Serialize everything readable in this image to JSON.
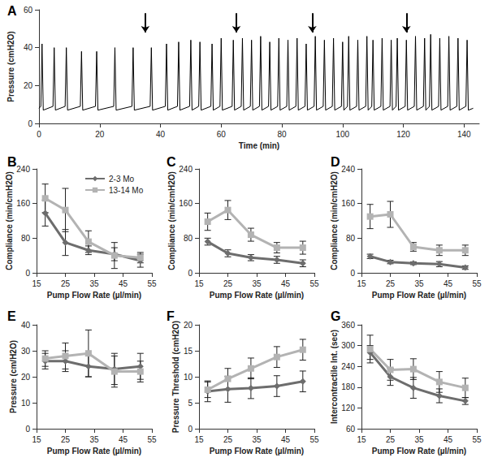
{
  "chart_data": [
    {
      "type": "line",
      "title": "A",
      "xlabel": "Time (min)",
      "ylabel": "Pressure (cmH2O)",
      "color": "#000000",
      "grid": false,
      "xlim": [
        0,
        145
      ],
      "xticks": [
        0,
        20,
        40,
        60,
        80,
        100,
        120,
        140
      ],
      "ylim": [
        0,
        60
      ],
      "yticks": [
        0,
        20,
        40,
        60
      ],
      "arrows": [
        35,
        65,
        90,
        121
      ],
      "x": [
        0,
        0.6,
        1,
        1.4,
        4.6,
        5,
        5.4,
        8.6,
        9,
        9.4,
        13.6,
        14,
        14.4,
        18.6,
        19,
        19.4,
        24.6,
        25,
        25.4,
        30.6,
        31,
        31.4,
        36.6,
        37,
        37.4,
        41.6,
        42,
        42.4,
        45.6,
        46,
        46.4,
        49.6,
        50,
        50.4,
        52.6,
        53,
        53.4,
        56.6,
        57,
        57.4,
        59.6,
        60,
        60.4,
        63.6,
        64,
        64.4,
        66.6,
        67,
        67.4,
        69.6,
        70,
        70.4,
        72.6,
        73,
        73.4,
        75.6,
        76,
        76.4,
        78.6,
        79,
        79.4,
        81.6,
        82,
        82.4,
        84.6,
        85,
        85.4,
        87.6,
        88,
        88.4,
        90.6,
        91,
        91.4,
        93.6,
        94,
        94.4,
        96.6,
        97,
        97.4,
        99.6,
        100,
        100.4,
        101.6,
        102,
        102.4,
        104.6,
        105,
        105.4,
        107.6,
        108,
        108.4,
        109.6,
        110,
        110.4,
        112.6,
        113,
        113.4,
        115.6,
        116,
        116.4,
        117.6,
        118,
        118.4,
        120.6,
        121,
        121.4,
        123.6,
        124,
        124.4,
        126.6,
        127,
        127.4,
        128.6,
        129,
        129.4,
        131.6,
        132,
        132.4,
        134.6,
        135,
        135.4,
        137.6,
        138,
        138.4,
        140.6,
        141,
        141.4,
        143
      ],
      "values": [
        8,
        9,
        42,
        7,
        9,
        40,
        7,
        9,
        40,
        7,
        9,
        38,
        7,
        9,
        38,
        7,
        9,
        40,
        7,
        9,
        40,
        7,
        9,
        40,
        7,
        9,
        42,
        7,
        9,
        43,
        7,
        9,
        44,
        7,
        9,
        43,
        7,
        9,
        42,
        7,
        9,
        45,
        7,
        9,
        44,
        7,
        9,
        45,
        7,
        9,
        44,
        7,
        9,
        46,
        7,
        9,
        43,
        7,
        9,
        45,
        7,
        9,
        44,
        7,
        9,
        45,
        7,
        9,
        42,
        7,
        9,
        46,
        7,
        9,
        44,
        7,
        9,
        45,
        7,
        9,
        43,
        7,
        9,
        46,
        7,
        9,
        44,
        7,
        9,
        46,
        7,
        9,
        44,
        7,
        9,
        45,
        7,
        9,
        44,
        7,
        9,
        45,
        7,
        9,
        44,
        7,
        9,
        46,
        7,
        9,
        45,
        7,
        9,
        47,
        7,
        9,
        45,
        7,
        9,
        46,
        7,
        9,
        45,
        7,
        9,
        44,
        7,
        8
      ]
    },
    {
      "type": "line",
      "title": "B",
      "xlabel": "Pump Flow Rate (µl/min)",
      "ylabel": "Compliance (min/cmH2O)",
      "grid": false,
      "legend": "top-right",
      "xlim": [
        15,
        55
      ],
      "xticks": [
        15,
        25,
        35,
        45,
        55
      ],
      "ylim": [
        0,
        240
      ],
      "yticks": [
        0,
        80,
        160,
        240
      ],
      "x": [
        18,
        25,
        33,
        42,
        51
      ],
      "series": [
        {
          "name": "2-3 Mo",
          "color": "#6d6d6d",
          "marker": "diamond",
          "values": [
            138,
            70,
            52,
            43,
            28
          ],
          "errors": [
            30,
            30,
            10,
            15,
            15
          ]
        },
        {
          "name": "13-14 Mo",
          "color": "#b3b3b3",
          "marker": "square",
          "values": [
            172,
            145,
            72,
            40,
            35
          ],
          "errors": [
            33,
            50,
            25,
            30,
            12
          ]
        }
      ]
    },
    {
      "type": "line",
      "title": "C",
      "xlabel": "Pump Flow Rate (µl/min)",
      "ylabel": "Compliance (min/cmH2O)",
      "grid": false,
      "xlim": [
        15,
        55
      ],
      "xticks": [
        15,
        25,
        35,
        45,
        55
      ],
      "ylim": [
        0,
        240
      ],
      "yticks": [
        0,
        80,
        160,
        240
      ],
      "x": [
        18,
        25,
        33,
        42,
        51
      ],
      "series": [
        {
          "name": "2-3 Mo",
          "color": "#6d6d6d",
          "marker": "diamond",
          "values": [
            72,
            45,
            35,
            30,
            22
          ],
          "errors": [
            8,
            8,
            7,
            8,
            8
          ]
        },
        {
          "name": "13-14 Mo",
          "color": "#b3b3b3",
          "marker": "square",
          "values": [
            118,
            145,
            88,
            58,
            58
          ],
          "errors": [
            20,
            22,
            15,
            12,
            15
          ]
        }
      ]
    },
    {
      "type": "line",
      "title": "D",
      "xlabel": "Pump Flow Rate (µl/min)",
      "ylabel": "Compliance (min/cmH2O)",
      "grid": false,
      "xlim": [
        15,
        55
      ],
      "xticks": [
        15,
        25,
        35,
        45,
        55
      ],
      "ylim": [
        0,
        240
      ],
      "yticks": [
        0,
        80,
        160,
        240
      ],
      "x": [
        18,
        25,
        33,
        42,
        51
      ],
      "series": [
        {
          "name": "2-3 Mo",
          "color": "#6d6d6d",
          "marker": "diamond",
          "values": [
            38,
            25,
            22,
            20,
            12
          ],
          "errors": [
            5,
            4,
            3,
            6,
            4
          ]
        },
        {
          "name": "13-14 Mo",
          "color": "#b3b3b3",
          "marker": "square",
          "values": [
            130,
            135,
            60,
            52,
            52
          ],
          "errors": [
            28,
            30,
            10,
            12,
            12
          ]
        }
      ]
    },
    {
      "type": "line",
      "title": "E",
      "xlabel": "Pump Flow Rate (µl/min)",
      "ylabel": "Pressure (cm/H2O)",
      "grid": false,
      "xlim": [
        15,
        55
      ],
      "xticks": [
        15,
        25,
        35,
        45,
        55
      ],
      "ylim": [
        0,
        40
      ],
      "yticks": [
        0,
        10,
        20,
        30,
        40
      ],
      "x": [
        18,
        25,
        33,
        42,
        51
      ],
      "series": [
        {
          "name": "2-3 Mo",
          "color": "#6d6d6d",
          "marker": "diamond",
          "values": [
            26,
            26,
            24,
            23,
            24
          ],
          "errors": [
            3,
            4,
            4,
            6,
            5
          ]
        },
        {
          "name": "13-14 Mo",
          "color": "#b3b3b3",
          "marker": "square",
          "values": [
            27,
            28,
            29,
            22,
            22
          ],
          "errors": [
            3,
            5,
            9,
            6,
            4
          ]
        }
      ]
    },
    {
      "type": "line",
      "title": "F",
      "xlabel": "Pump Flow Rate (µl/min)",
      "ylabel": "Pressure Threshold (cmH2O)",
      "grid": false,
      "xlim": [
        15,
        55
      ],
      "xticks": [
        15,
        25,
        35,
        45,
        55
      ],
      "ylim": [
        0,
        20
      ],
      "yticks": [
        0,
        5,
        10,
        15,
        20
      ],
      "x": [
        18,
        25,
        33,
        42,
        51
      ],
      "series": [
        {
          "name": "2-3 Mo",
          "color": "#6d6d6d",
          "marker": "diamond",
          "values": [
            7.2,
            7.6,
            7.8,
            8.2,
            9.1
          ],
          "errors": [
            2,
            2.5,
            2,
            2,
            2
          ]
        },
        {
          "name": "13-14 Mo",
          "color": "#b3b3b3",
          "marker": "square",
          "values": [
            7.5,
            9.6,
            11.6,
            13.8,
            15.2
          ],
          "errors": [
            1.5,
            2,
            2,
            2,
            2
          ]
        }
      ]
    },
    {
      "type": "line",
      "title": "G",
      "xlabel": "Pump Flow Rate (µl/min)",
      "ylabel": "Intercontractile Int. (sec)",
      "grid": false,
      "xlim": [
        15,
        55
      ],
      "xticks": [
        15,
        25,
        35,
        45,
        55
      ],
      "ylim": [
        60,
        360
      ],
      "yticks": [
        60,
        120,
        180,
        240,
        300,
        360
      ],
      "x": [
        18,
        25,
        33,
        42,
        51
      ],
      "series": [
        {
          "name": "2-3 Mo",
          "color": "#6d6d6d",
          "marker": "diamond",
          "values": [
            280,
            210,
            178,
            155,
            140
          ],
          "errors": [
            20,
            25,
            30,
            20,
            10
          ]
        },
        {
          "name": "13-14 Mo",
          "color": "#b3b3b3",
          "marker": "square",
          "values": [
            290,
            230,
            232,
            195,
            178
          ],
          "errors": [
            40,
            30,
            30,
            30,
            28
          ]
        }
      ]
    }
  ]
}
